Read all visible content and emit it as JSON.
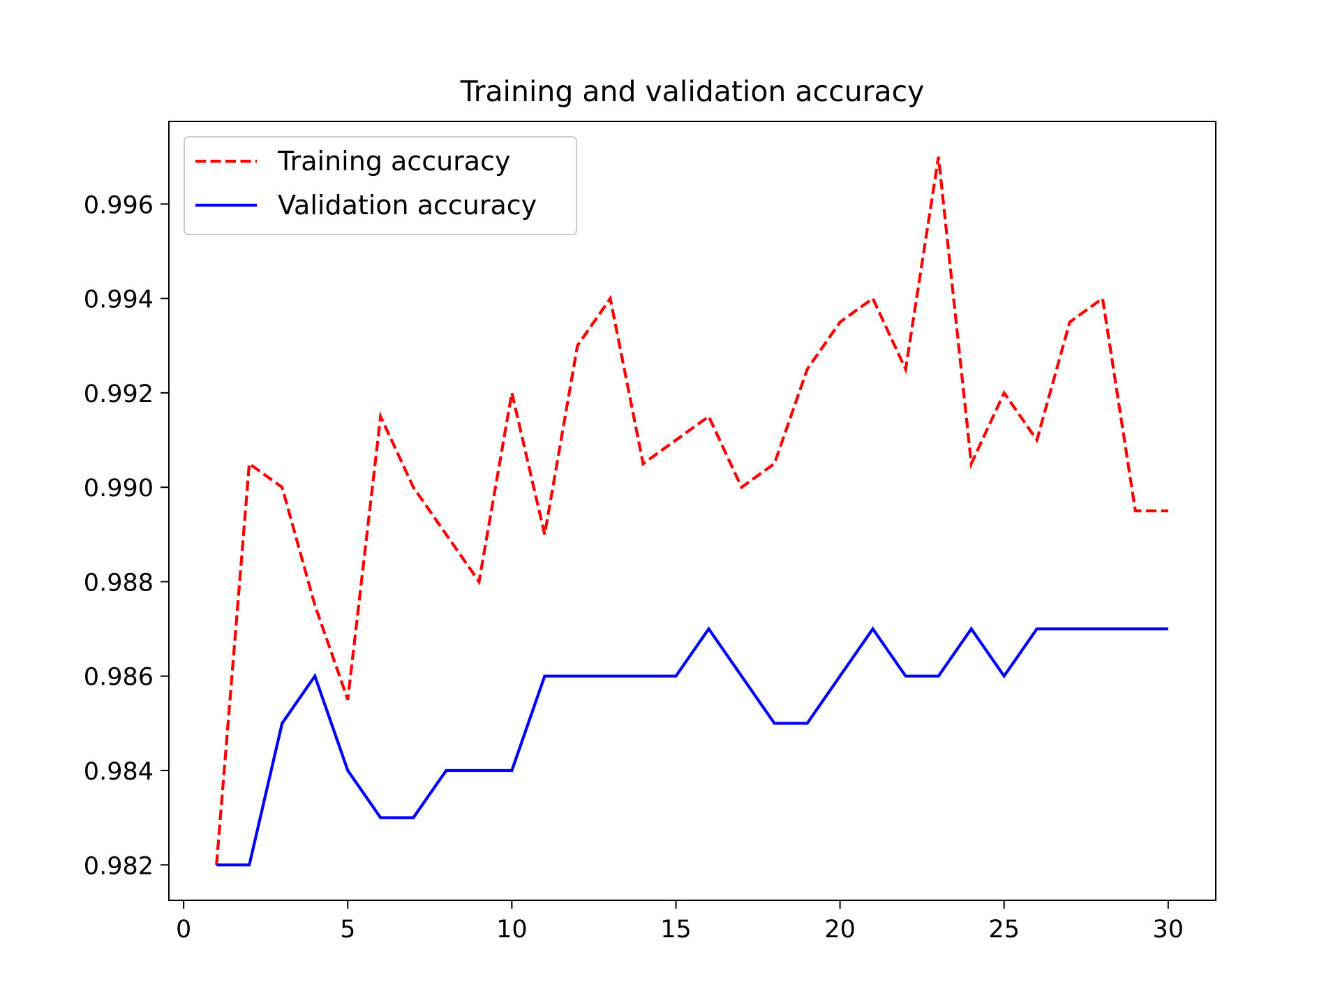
{
  "chart_data": {
    "type": "line",
    "title": "Training and validation accuracy",
    "xlabel": "",
    "ylabel": "",
    "xlim": [
      -0.45,
      31.45
    ],
    "ylim": [
      0.98125,
      0.99775
    ],
    "xticks": [
      0,
      5,
      10,
      15,
      20,
      25,
      30
    ],
    "xtick_labels": [
      "0",
      "5",
      "10",
      "15",
      "20",
      "25",
      "30"
    ],
    "yticks": [
      0.982,
      0.984,
      0.986,
      0.988,
      0.99,
      0.992,
      0.994,
      0.996
    ],
    "ytick_labels": [
      "0.982",
      "0.984",
      "0.986",
      "0.988",
      "0.990",
      "0.992",
      "0.994",
      "0.996"
    ],
    "grid": false,
    "legend_position": "top-left",
    "x": [
      1,
      2,
      3,
      4,
      5,
      6,
      7,
      8,
      9,
      10,
      11,
      12,
      13,
      14,
      15,
      16,
      17,
      18,
      19,
      20,
      21,
      22,
      23,
      24,
      25,
      26,
      27,
      28,
      29,
      30
    ],
    "series": [
      {
        "name": "Training accuracy",
        "color": "#ff0000",
        "style": "dashed",
        "values": [
          0.982,
          0.9905,
          0.99,
          0.9875,
          0.9855,
          0.9915,
          0.99,
          0.989,
          0.988,
          0.992,
          0.989,
          0.993,
          0.994,
          0.9905,
          0.991,
          0.9915,
          0.99,
          0.9905,
          0.9925,
          0.9935,
          0.994,
          0.9925,
          0.997,
          0.9905,
          0.992,
          0.991,
          0.9935,
          0.994,
          0.9895,
          0.9895
        ]
      },
      {
        "name": "Validation accuracy",
        "color": "#0000ff",
        "style": "solid",
        "values": [
          0.982,
          0.982,
          0.985,
          0.986,
          0.984,
          0.983,
          0.983,
          0.984,
          0.984,
          0.984,
          0.986,
          0.986,
          0.986,
          0.986,
          0.986,
          0.987,
          0.986,
          0.985,
          0.985,
          0.986,
          0.987,
          0.986,
          0.986,
          0.987,
          0.986,
          0.987,
          0.987,
          0.987,
          0.987,
          0.987
        ]
      }
    ]
  }
}
